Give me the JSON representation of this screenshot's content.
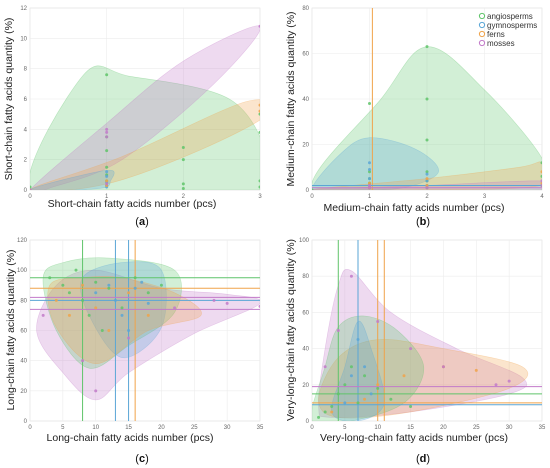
{
  "colors": {
    "angiosperms": "#5fc46a",
    "gymnosperms": "#5aa6d6",
    "ferns": "#f0a34a",
    "mosses": "#c27ac9"
  },
  "legend": [
    "angiosperms",
    "gymnosperms",
    "ferns",
    "mosses"
  ],
  "chart_data": [
    {
      "id": "a",
      "type": "scatter",
      "label": "a",
      "xlabel": "Short-chain fatty acids number (pcs)",
      "ylabel": "Short-chain fatty acids quantity (%)",
      "xlim": [
        0,
        3
      ],
      "ylim": [
        0,
        12
      ],
      "xticks": [
        0,
        1,
        2,
        3
      ],
      "yticks": [
        0,
        2,
        4,
        6,
        8,
        10,
        12
      ],
      "grid": true,
      "legend": false,
      "series": [
        {
          "name": "angiosperms",
          "x": [
            0,
            0,
            1,
            1,
            1,
            1,
            1,
            1,
            1,
            2,
            2,
            2,
            2,
            3,
            3,
            3,
            3
          ],
          "y": [
            0,
            0.2,
            0.3,
            0.6,
            1.0,
            1.5,
            2.6,
            3.5,
            7.6,
            0.1,
            0.4,
            2.0,
            2.8,
            0.2,
            0.6,
            3.8,
            5.0
          ]
        },
        {
          "name": "gymnosperms",
          "x": [
            0,
            1,
            1,
            1,
            1
          ],
          "y": [
            0,
            0.2,
            0.5,
            0.9,
            1.2
          ]
        },
        {
          "name": "ferns",
          "x": [
            0,
            1,
            1,
            3,
            3
          ],
          "y": [
            0,
            0.3,
            0.6,
            5.2,
            5.6
          ]
        },
        {
          "name": "mosses",
          "x": [
            0,
            1,
            1,
            1,
            1,
            3
          ],
          "y": [
            0,
            0.4,
            3.8,
            4.0,
            3.5,
            10.8
          ]
        }
      ],
      "hulls": [
        {
          "name": "angiosperms",
          "points": [
            [
              0,
              0
            ],
            [
              0.7,
              7.6
            ],
            [
              1.3,
              7.5
            ],
            [
              2.6,
              6.0
            ],
            [
              3.1,
              2.2
            ],
            [
              3,
              0
            ],
            [
              1.5,
              -0.2
            ]
          ]
        },
        {
          "name": "mosses",
          "points": [
            [
              0,
              0
            ],
            [
              1,
              4.4
            ],
            [
              2,
              8.5
            ],
            [
              3,
              10.8
            ],
            [
              2.4,
              7.0
            ],
            [
              1.2,
              2.0
            ],
            [
              0.3,
              0.2
            ]
          ]
        },
        {
          "name": "ferns",
          "points": [
            [
              0,
              0
            ],
            [
              1.2,
              2.2
            ],
            [
              2.8,
              5.8
            ],
            [
              3.1,
              5.0
            ],
            [
              2.2,
              2.6
            ],
            [
              1,
              0.4
            ]
          ]
        },
        {
          "name": "gymnosperms",
          "points": [
            [
              0,
              0
            ],
            [
              1,
              1.3
            ],
            [
              1.05,
              0.6
            ],
            [
              0.9,
              0.1
            ]
          ]
        }
      ]
    },
    {
      "id": "b",
      "type": "scatter",
      "label": "b",
      "xlabel": "Medium-chain fatty acids number (pcs)",
      "ylabel": "Medium-chain fatty acids quantity (%)",
      "xlim": [
        0,
        4
      ],
      "ylim": [
        0,
        80
      ],
      "xticks": [
        0,
        1,
        2,
        3,
        4
      ],
      "yticks": [
        0,
        20,
        40,
        60,
        80
      ],
      "grid": true,
      "legend": true,
      "series": [
        {
          "name": "angiosperms",
          "x": [
            0,
            1,
            1,
            1,
            1,
            1,
            2,
            2,
            2,
            2,
            2,
            2,
            4,
            4,
            4
          ],
          "y": [
            0,
            1,
            3,
            5,
            8,
            38,
            1,
            4,
            8,
            22,
            40,
            63,
            2,
            6,
            12
          ]
        },
        {
          "name": "gymnosperms",
          "x": [
            1,
            1,
            1,
            1,
            2,
            2,
            2
          ],
          "y": [
            2,
            5,
            9,
            12,
            2,
            4,
            7
          ]
        },
        {
          "name": "ferns",
          "x": [
            1,
            1,
            2,
            2,
            4,
            4
          ],
          "y": [
            1,
            3,
            2,
            5,
            3,
            8
          ]
        },
        {
          "name": "mosses",
          "x": [
            1,
            1,
            2,
            4,
            4
          ],
          "y": [
            1,
            2,
            1,
            2,
            4
          ]
        }
      ],
      "hulls": [
        {
          "name": "angiosperms",
          "points": [
            [
              0,
              0
            ],
            [
              1.2,
              40
            ],
            [
              2,
              63
            ],
            [
              3,
              44
            ],
            [
              4,
              14
            ],
            [
              4,
              0
            ],
            [
              2,
              -1
            ]
          ]
        },
        {
          "name": "gymnosperms",
          "points": [
            [
              0,
              0
            ],
            [
              0.5,
              16
            ],
            [
              1,
              23
            ],
            [
              1.8,
              18
            ],
            [
              2.2,
              8
            ],
            [
              1.6,
              1
            ],
            [
              0.6,
              0
            ]
          ]
        },
        {
          "name": "ferns",
          "points": [
            [
              0,
              0
            ],
            [
              2,
              5
            ],
            [
              3.6,
              10
            ],
            [
              4,
              12
            ],
            [
              4,
              2
            ],
            [
              2,
              0
            ]
          ]
        },
        {
          "name": "mosses",
          "points": [
            [
              0,
              0
            ],
            [
              2,
              2
            ],
            [
              4,
              4
            ],
            [
              4,
              0
            ]
          ]
        }
      ],
      "vlines": [
        {
          "name": "ferns",
          "x": 1.05
        }
      ],
      "hlines": [
        {
          "name": "mosses",
          "y": 1
        },
        {
          "name": "gymnosperms",
          "y": 2
        }
      ]
    },
    {
      "id": "c",
      "type": "scatter",
      "label": "c",
      "xlabel": "Long-chain fatty acids number (pcs)",
      "ylabel": "Long-chain fatty acids quantity (%)",
      "xlim": [
        0,
        35
      ],
      "ylim": [
        0,
        120
      ],
      "xticks": [
        0,
        5,
        10,
        15,
        20,
        25,
        30,
        35
      ],
      "yticks": [
        0,
        20,
        40,
        60,
        80,
        100,
        120
      ],
      "grid": true,
      "legend": false,
      "series": [
        {
          "name": "angiosperms",
          "x": [
            3,
            5,
            6,
            7,
            8,
            9,
            10,
            11,
            12,
            14,
            16,
            18,
            20
          ],
          "y": [
            95,
            90,
            85,
            100,
            80,
            70,
            92,
            60,
            88,
            75,
            95,
            85,
            90
          ]
        },
        {
          "name": "gymnosperms",
          "x": [
            10,
            12,
            13,
            14,
            15,
            16,
            17,
            18
          ],
          "y": [
            85,
            90,
            80,
            70,
            60,
            88,
            92,
            78
          ]
        },
        {
          "name": "ferns",
          "x": [
            4,
            6,
            8,
            10,
            12,
            15,
            18
          ],
          "y": [
            80,
            70,
            90,
            75,
            60,
            85,
            70
          ]
        },
        {
          "name": "mosses",
          "x": [
            2,
            8,
            10,
            15,
            22,
            28,
            30,
            35
          ],
          "y": [
            70,
            40,
            20,
            55,
            75,
            80,
            78,
            76
          ]
        }
      ],
      "hulls": [
        {
          "name": "mosses",
          "points": [
            [
              1,
              60
            ],
            [
              4,
              90
            ],
            [
              10,
              100
            ],
            [
              20,
              88
            ],
            [
              30,
              84
            ],
            [
              35,
              78
            ],
            [
              25,
              58
            ],
            [
              15,
              32
            ],
            [
              10,
              14
            ],
            [
              5,
              32
            ]
          ]
        },
        {
          "name": "angiosperms",
          "points": [
            [
              2,
              95
            ],
            [
              5,
              105
            ],
            [
              12,
              108
            ],
            [
              22,
              100
            ],
            [
              22,
              72
            ],
            [
              15,
              50
            ],
            [
              9,
              35
            ],
            [
              4,
              60
            ]
          ]
        },
        {
          "name": "gymnosperms",
          "points": [
            [
              8,
              95
            ],
            [
              14,
              105
            ],
            [
              20,
              100
            ],
            [
              20,
              62
            ],
            [
              14,
              42
            ],
            [
              9,
              70
            ]
          ]
        },
        {
          "name": "ferns",
          "points": [
            [
              3,
              90
            ],
            [
              8,
              95
            ],
            [
              14,
              95
            ],
            [
              22,
              85
            ],
            [
              26,
              70
            ],
            [
              18,
              60
            ],
            [
              10,
              38
            ],
            [
              4,
              62
            ]
          ]
        }
      ],
      "vlines": [
        {
          "name": "angiosperms",
          "x": 8
        },
        {
          "name": "gymnosperms",
          "x": 13
        },
        {
          "name": "gymnosperms",
          "x": 15
        },
        {
          "name": "ferns",
          "x": 16
        }
      ],
      "hlines": [
        {
          "name": "angiosperms",
          "y": 95
        },
        {
          "name": "ferns",
          "y": 88
        },
        {
          "name": "mosses",
          "y": 82
        },
        {
          "name": "gymnosperms",
          "y": 80
        },
        {
          "name": "mosses",
          "y": 74
        }
      ]
    },
    {
      "id": "d",
      "type": "scatter",
      "label": "d",
      "xlabel": "Very-long-chain fatty acids number (pcs)",
      "ylabel": "Very-long-chain fatty acids quantity (%)",
      "xlim": [
        0,
        35
      ],
      "ylim": [
        0,
        100
      ],
      "xticks": [
        0,
        5,
        10,
        15,
        20,
        25,
        30,
        35
      ],
      "yticks": [
        0,
        20,
        40,
        60,
        80,
        100
      ],
      "grid": true,
      "legend": false,
      "series": [
        {
          "name": "angiosperms",
          "x": [
            1,
            2,
            3,
            4,
            5,
            6,
            7,
            8,
            10,
            12,
            15
          ],
          "y": [
            2,
            5,
            8,
            15,
            20,
            30,
            10,
            25,
            18,
            12,
            8
          ]
        },
        {
          "name": "gymnosperms",
          "x": [
            5,
            6,
            7,
            8,
            9
          ],
          "y": [
            10,
            25,
            45,
            30,
            15
          ]
        },
        {
          "name": "ferns",
          "x": [
            3,
            8,
            10,
            14,
            20,
            25
          ],
          "y": [
            5,
            12,
            20,
            25,
            30,
            28
          ]
        },
        {
          "name": "mosses",
          "x": [
            2,
            4,
            6,
            10,
            15,
            20,
            28,
            30
          ],
          "y": [
            30,
            50,
            80,
            55,
            40,
            30,
            20,
            22
          ]
        }
      ],
      "hulls": [
        {
          "name": "mosses",
          "points": [
            [
              1,
              8
            ],
            [
              2,
              40
            ],
            [
              4,
              75
            ],
            [
              6,
              83
            ],
            [
              12,
              60
            ],
            [
              22,
              40
            ],
            [
              32,
              24
            ],
            [
              30,
              15
            ],
            [
              15,
              5
            ],
            [
              3,
              2
            ]
          ]
        },
        {
          "name": "ferns",
          "points": [
            [
              1,
              12
            ],
            [
              4,
              35
            ],
            [
              10,
              45
            ],
            [
              20,
              40
            ],
            [
              32,
              30
            ],
            [
              30,
              18
            ],
            [
              15,
              5
            ],
            [
              4,
              2
            ]
          ]
        },
        {
          "name": "angiosperms",
          "points": [
            [
              0,
              0
            ],
            [
              2,
              30
            ],
            [
              4,
              52
            ],
            [
              8,
              58
            ],
            [
              13,
              50
            ],
            [
              17,
              30
            ],
            [
              14,
              10
            ],
            [
              6,
              0
            ]
          ]
        },
        {
          "name": "gymnosperms",
          "points": [
            [
              3,
              5
            ],
            [
              5,
              30
            ],
            [
              7,
              55
            ],
            [
              9,
              40
            ],
            [
              11,
              10
            ],
            [
              7,
              0
            ]
          ]
        }
      ],
      "vlines": [
        {
          "name": "angiosperms",
          "x": 4
        },
        {
          "name": "gymnosperms",
          "x": 7
        },
        {
          "name": "ferns",
          "x": 10
        },
        {
          "name": "ferns",
          "x": 11
        }
      ],
      "hlines": [
        {
          "name": "mosses",
          "y": 19
        },
        {
          "name": "angiosperms",
          "y": 15
        },
        {
          "name": "gymnosperms",
          "y": 9
        },
        {
          "name": "ferns",
          "y": 10
        }
      ]
    }
  ]
}
